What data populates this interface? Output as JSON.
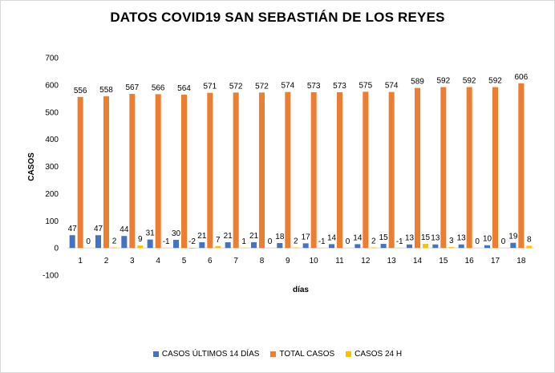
{
  "chart_data": {
    "type": "bar",
    "title": "DATOS COVID19 SAN SEBASTIÁN DE LOS REYES",
    "xlabel": "días",
    "ylabel": "CASOS",
    "ylim": [
      -100,
      700
    ],
    "yticks": [
      -100,
      0,
      100,
      200,
      300,
      400,
      500,
      600,
      700
    ],
    "grid": false,
    "legend_position": "bottom",
    "categories": [
      "1",
      "2",
      "3",
      "4",
      "5",
      "6",
      "7",
      "8",
      "9",
      "10",
      "11",
      "12",
      "13",
      "14",
      "15",
      "16",
      "17",
      "18"
    ],
    "series": [
      {
        "name": "CASOS ÚLTIMOS 14 DÍAS",
        "color": "#4472c4",
        "values": [
          47,
          47,
          44,
          31,
          30,
          21,
          21,
          21,
          18,
          17,
          14,
          14,
          15,
          13,
          13,
          13,
          10,
          19
        ]
      },
      {
        "name": "TOTAL CASOS",
        "color": "#ed7d31",
        "values": [
          556,
          558,
          567,
          566,
          564,
          571,
          572,
          572,
          574,
          573,
          573,
          575,
          574,
          589,
          592,
          592,
          592,
          606
        ]
      },
      {
        "name": "CASOS 24 H",
        "color": "#ffc000",
        "values": [
          0,
          2,
          9,
          -1,
          -2,
          7,
          1,
          0,
          2,
          -1,
          0,
          2,
          -1,
          15,
          3,
          0,
          0,
          8
        ]
      }
    ]
  }
}
